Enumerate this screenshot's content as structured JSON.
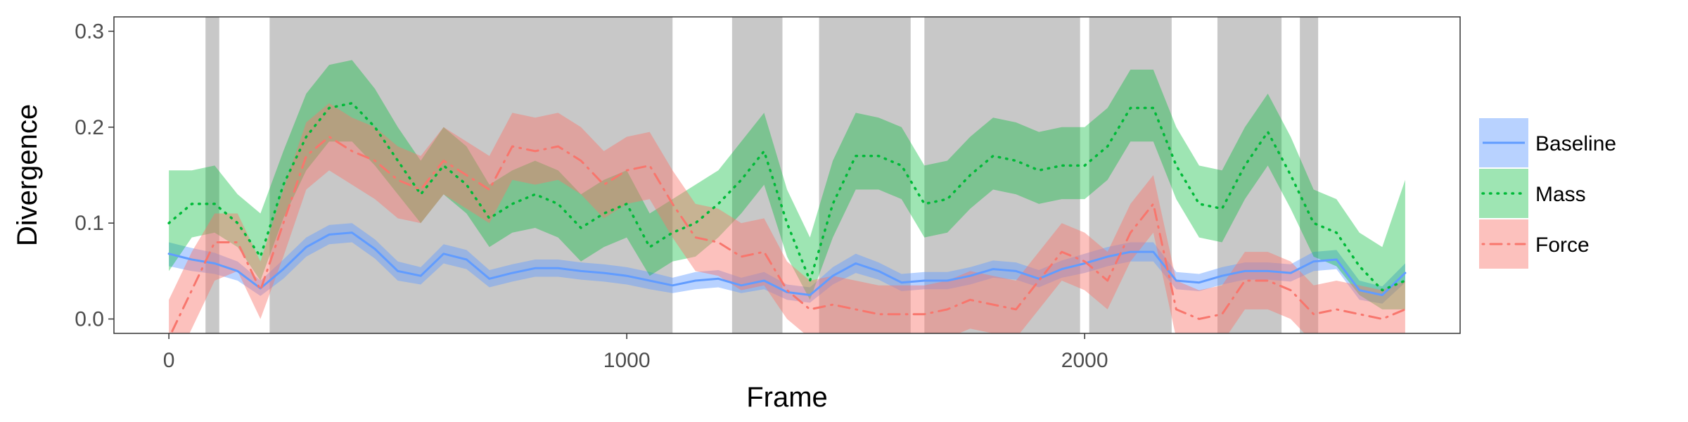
{
  "chart_data": {
    "type": "line",
    "xlabel": "Frame",
    "ylabel": "Divergence",
    "xlim": [
      -120,
      2820
    ],
    "ylim": [
      -0.015,
      0.315
    ],
    "x_ticks": [
      0,
      1000,
      2000
    ],
    "x_tick_labels": [
      "0",
      "1000",
      "2000"
    ],
    "y_ticks": [
      0.0,
      0.1,
      0.2,
      0.3
    ],
    "y_tick_labels": [
      "0.0",
      "0.1",
      "0.2",
      "0.3"
    ],
    "legend_position": "right",
    "shaded_intervals": [
      [
        80,
        110
      ],
      [
        220,
        1100
      ],
      [
        1230,
        1340
      ],
      [
        1420,
        1620
      ],
      [
        1650,
        1990
      ],
      [
        2010,
        2190
      ],
      [
        2290,
        2430
      ],
      [
        2470,
        2510
      ]
    ],
    "x": [
      0,
      50,
      100,
      150,
      200,
      250,
      300,
      350,
      400,
      450,
      500,
      550,
      600,
      650,
      700,
      750,
      800,
      850,
      900,
      950,
      1000,
      1050,
      1100,
      1150,
      1200,
      1250,
      1300,
      1350,
      1400,
      1450,
      1500,
      1550,
      1600,
      1650,
      1700,
      1750,
      1800,
      1850,
      1900,
      1950,
      2000,
      2050,
      2100,
      2150,
      2200,
      2250,
      2300,
      2350,
      2400,
      2450,
      2500,
      2550,
      2600,
      2650,
      2700
    ],
    "series": [
      {
        "name": "Baseline",
        "line": "solid",
        "color": "#619CFF",
        "values": [
          0.068,
          0.062,
          0.058,
          0.05,
          0.032,
          0.052,
          0.075,
          0.088,
          0.09,
          0.073,
          0.05,
          0.045,
          0.068,
          0.062,
          0.042,
          0.048,
          0.053,
          0.053,
          0.05,
          0.048,
          0.045,
          0.04,
          0.035,
          0.04,
          0.042,
          0.035,
          0.04,
          0.028,
          0.025,
          0.045,
          0.058,
          0.05,
          0.038,
          0.04,
          0.04,
          0.045,
          0.052,
          0.05,
          0.042,
          0.052,
          0.058,
          0.065,
          0.07,
          0.07,
          0.04,
          0.038,
          0.045,
          0.05,
          0.05,
          0.048,
          0.06,
          0.062,
          0.03,
          0.025,
          0.048
        ],
        "lower": [
          0.055,
          0.05,
          0.047,
          0.04,
          0.024,
          0.042,
          0.065,
          0.078,
          0.08,
          0.063,
          0.04,
          0.036,
          0.058,
          0.052,
          0.033,
          0.039,
          0.044,
          0.044,
          0.041,
          0.039,
          0.036,
          0.031,
          0.027,
          0.031,
          0.033,
          0.027,
          0.031,
          0.02,
          0.017,
          0.036,
          0.048,
          0.041,
          0.029,
          0.031,
          0.031,
          0.036,
          0.043,
          0.041,
          0.033,
          0.043,
          0.048,
          0.055,
          0.06,
          0.06,
          0.031,
          0.029,
          0.036,
          0.041,
          0.041,
          0.039,
          0.05,
          0.052,
          0.02,
          0.016,
          0.038
        ],
        "upper": [
          0.08,
          0.074,
          0.069,
          0.06,
          0.04,
          0.062,
          0.085,
          0.098,
          0.1,
          0.083,
          0.06,
          0.054,
          0.078,
          0.072,
          0.051,
          0.057,
          0.062,
          0.062,
          0.059,
          0.057,
          0.054,
          0.049,
          0.043,
          0.049,
          0.051,
          0.043,
          0.049,
          0.036,
          0.033,
          0.054,
          0.068,
          0.059,
          0.047,
          0.049,
          0.049,
          0.054,
          0.061,
          0.059,
          0.051,
          0.061,
          0.068,
          0.075,
          0.08,
          0.08,
          0.049,
          0.047,
          0.054,
          0.059,
          0.059,
          0.057,
          0.07,
          0.072,
          0.04,
          0.034,
          0.058
        ]
      },
      {
        "name": "Mass",
        "line": "dotted",
        "color": "#00BA38",
        "values": [
          0.1,
          0.12,
          0.12,
          0.1,
          0.065,
          0.14,
          0.19,
          0.22,
          0.225,
          0.2,
          0.165,
          0.13,
          0.16,
          0.14,
          0.105,
          0.12,
          0.13,
          0.12,
          0.095,
          0.11,
          0.12,
          0.075,
          0.09,
          0.1,
          0.12,
          0.145,
          0.175,
          0.1,
          0.04,
          0.12,
          0.17,
          0.17,
          0.16,
          0.12,
          0.125,
          0.15,
          0.17,
          0.165,
          0.155,
          0.16,
          0.16,
          0.18,
          0.22,
          0.22,
          0.16,
          0.12,
          0.115,
          0.16,
          0.195,
          0.15,
          0.1,
          0.09,
          0.055,
          0.03,
          0.04
        ],
        "lower": [
          0.05,
          0.085,
          0.09,
          0.075,
          0.04,
          0.105,
          0.155,
          0.185,
          0.185,
          0.16,
          0.13,
          0.1,
          0.13,
          0.11,
          0.075,
          0.09,
          0.095,
          0.085,
          0.06,
          0.075,
          0.085,
          0.045,
          0.06,
          0.065,
          0.085,
          0.11,
          0.14,
          0.065,
          0.02,
          0.085,
          0.135,
          0.135,
          0.125,
          0.085,
          0.09,
          0.115,
          0.135,
          0.13,
          0.12,
          0.125,
          0.125,
          0.145,
          0.185,
          0.185,
          0.125,
          0.085,
          0.08,
          0.125,
          0.16,
          0.115,
          0.065,
          0.055,
          0.025,
          0.01,
          0.01
        ],
        "upper": [
          0.155,
          0.155,
          0.16,
          0.13,
          0.11,
          0.175,
          0.235,
          0.265,
          0.27,
          0.24,
          0.2,
          0.165,
          0.2,
          0.18,
          0.14,
          0.155,
          0.165,
          0.155,
          0.13,
          0.145,
          0.155,
          0.11,
          0.125,
          0.14,
          0.155,
          0.185,
          0.215,
          0.135,
          0.085,
          0.165,
          0.215,
          0.21,
          0.2,
          0.16,
          0.165,
          0.19,
          0.21,
          0.205,
          0.195,
          0.2,
          0.2,
          0.22,
          0.26,
          0.26,
          0.2,
          0.16,
          0.155,
          0.2,
          0.235,
          0.19,
          0.135,
          0.125,
          0.09,
          0.075,
          0.145
        ]
      },
      {
        "name": "Force",
        "line": "dashdot",
        "color": "#F8766D",
        "values": [
          -0.02,
          0.03,
          0.08,
          0.08,
          0.03,
          0.1,
          0.17,
          0.19,
          0.175,
          0.165,
          0.145,
          0.135,
          0.165,
          0.15,
          0.135,
          0.18,
          0.175,
          0.18,
          0.165,
          0.14,
          0.155,
          0.16,
          0.12,
          0.085,
          0.08,
          0.065,
          0.07,
          0.03,
          0.01,
          0.015,
          0.01,
          0.005,
          0.005,
          0.005,
          0.01,
          0.02,
          0.015,
          0.01,
          0.04,
          0.07,
          0.06,
          0.04,
          0.09,
          0.12,
          0.01,
          0.0,
          0.005,
          0.04,
          0.04,
          0.03,
          0.005,
          0.01,
          0.005,
          0.0,
          0.01
        ],
        "lower": [
          -0.06,
          -0.01,
          0.04,
          0.05,
          0.0,
          0.065,
          0.135,
          0.155,
          0.14,
          0.125,
          0.105,
          0.1,
          0.13,
          0.115,
          0.1,
          0.145,
          0.14,
          0.145,
          0.13,
          0.105,
          0.12,
          0.125,
          0.085,
          0.05,
          0.045,
          0.03,
          0.035,
          0.0,
          -0.02,
          -0.015,
          -0.02,
          -0.025,
          -0.025,
          -0.025,
          -0.02,
          -0.01,
          -0.015,
          -0.02,
          0.01,
          0.04,
          0.03,
          0.01,
          0.06,
          0.09,
          -0.02,
          -0.03,
          -0.025,
          0.01,
          0.01,
          0.0,
          -0.025,
          -0.02,
          -0.025,
          -0.03,
          -0.02
        ],
        "upper": [
          0.02,
          0.07,
          0.11,
          0.11,
          0.06,
          0.135,
          0.205,
          0.225,
          0.21,
          0.2,
          0.18,
          0.17,
          0.2,
          0.185,
          0.17,
          0.215,
          0.21,
          0.215,
          0.2,
          0.175,
          0.19,
          0.195,
          0.155,
          0.12,
          0.115,
          0.1,
          0.105,
          0.06,
          0.04,
          0.045,
          0.04,
          0.035,
          0.035,
          0.035,
          0.04,
          0.05,
          0.045,
          0.04,
          0.07,
          0.1,
          0.09,
          0.07,
          0.12,
          0.15,
          0.04,
          0.03,
          0.035,
          0.07,
          0.07,
          0.06,
          0.035,
          0.04,
          0.035,
          0.03,
          0.04
        ]
      }
    ]
  }
}
